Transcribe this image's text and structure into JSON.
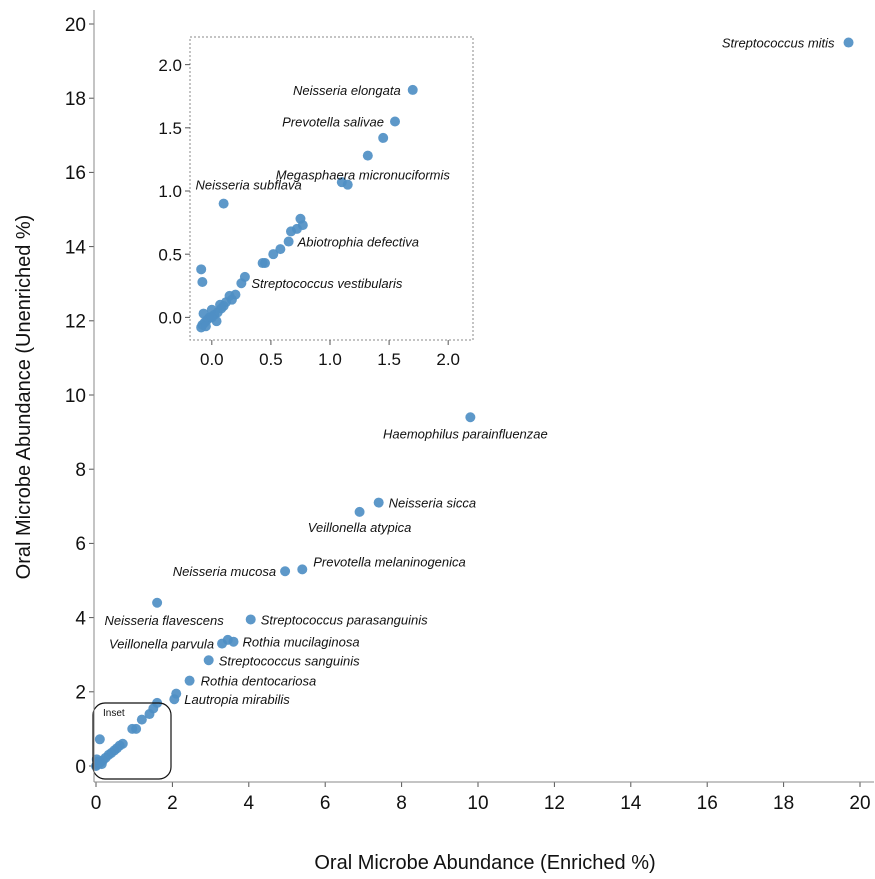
{
  "chart_data": [
    {
      "type": "scatter",
      "id": "main",
      "title": "",
      "xlabel": "Oral Microbe Abundance (Enriched %)",
      "ylabel": "Oral Microbe Abundance (Unenriched %)",
      "xlim": [
        0,
        20
      ],
      "ylim": [
        0,
        20
      ],
      "xticks": [
        "0",
        "2",
        "4",
        "6",
        "8",
        "10",
        "12",
        "14",
        "16",
        "18",
        "20"
      ],
      "yticks": [
        "0",
        "2",
        "4",
        "6",
        "8",
        "10",
        "12",
        "14",
        "16",
        "18",
        "20"
      ],
      "grid": false,
      "point_color": "#4f8fc4",
      "inset_label": "Inset",
      "labeled_points": [
        {
          "name": "Streptococcus mitis",
          "x": 19.7,
          "y": 19.5
        },
        {
          "name": "Haemophilus parainfluenzae",
          "x": 9.8,
          "y": 9.4
        },
        {
          "name": "Neisseria sicca",
          "x": 7.4,
          "y": 7.1
        },
        {
          "name": "Veillonella atypica",
          "x": 6.9,
          "y": 6.85
        },
        {
          "name": "Prevotella melaninogenica",
          "x": 5.4,
          "y": 5.3
        },
        {
          "name": "Neisseria mucosa",
          "x": 4.95,
          "y": 5.25
        },
        {
          "name": "Neisseria flavescens",
          "x": 1.6,
          "y": 4.4
        },
        {
          "name": "Streptococcus parasanguinis",
          "x": 4.05,
          "y": 3.95
        },
        {
          "name": "Veillonella parvula",
          "x": 3.3,
          "y": 3.3
        },
        {
          "name": "Rothia mucilaginosa",
          "x": 3.6,
          "y": 3.35
        },
        {
          "name": "Streptococcus sanguinis",
          "x": 2.95,
          "y": 2.85
        },
        {
          "name": "Rothia dentocariosa",
          "x": 2.45,
          "y": 2.3
        },
        {
          "name": "Lautropia mirabilis",
          "x": 2.05,
          "y": 1.8
        }
      ],
      "unlabeled_points": [
        {
          "x": 3.45,
          "y": 3.4
        },
        {
          "x": 2.1,
          "y": 1.95
        },
        {
          "x": 1.6,
          "y": 1.7
        },
        {
          "x": 1.5,
          "y": 1.55
        },
        {
          "x": 1.4,
          "y": 1.4
        },
        {
          "x": 1.2,
          "y": 1.25
        },
        {
          "x": 1.05,
          "y": 1.0
        },
        {
          "x": 0.95,
          "y": 1.0
        },
        {
          "x": 0.1,
          "y": 0.72
        },
        {
          "x": 0.7,
          "y": 0.6
        },
        {
          "x": 0.62,
          "y": 0.55
        },
        {
          "x": 0.55,
          "y": 0.48
        },
        {
          "x": 0.48,
          "y": 0.42
        },
        {
          "x": 0.4,
          "y": 0.35
        },
        {
          "x": 0.33,
          "y": 0.3
        },
        {
          "x": 0.25,
          "y": 0.22
        },
        {
          "x": 0.18,
          "y": 0.15
        },
        {
          "x": 0.12,
          "y": 0.1
        },
        {
          "x": 0.07,
          "y": 0.06
        },
        {
          "x": 0.03,
          "y": 0.03
        },
        {
          "x": 0.0,
          "y": 0.0
        },
        {
          "x": 0.05,
          "y": 0.12
        },
        {
          "x": 0.15,
          "y": 0.05
        },
        {
          "x": 0.02,
          "y": 0.18
        }
      ]
    },
    {
      "type": "scatter",
      "id": "inset",
      "title": "",
      "xlabel": "",
      "ylabel": "",
      "xlim": [
        -0.1,
        2.1
      ],
      "ylim": [
        -0.1,
        2.1
      ],
      "xticks": [
        "0.0",
        "0.5",
        "1.0",
        "1.5",
        "2.0"
      ],
      "yticks": [
        "0.0",
        "0.5",
        "1.0",
        "1.5",
        "2.0"
      ],
      "grid": false,
      "point_color": "#4f8fc4",
      "labeled_points": [
        {
          "name": "Neisseria elongata",
          "x": 1.7,
          "y": 1.8
        },
        {
          "name": "Prevotella salivae",
          "x": 1.55,
          "y": 1.55
        },
        {
          "name": "Megasphaera micronuciformis",
          "x": 1.32,
          "y": 1.28
        },
        {
          "name": "Neisseria subflava",
          "x": 0.1,
          "y": 0.9
        },
        {
          "name": "Abiotrophia defectiva",
          "x": 0.65,
          "y": 0.6
        },
        {
          "name": "Streptococcus vestibularis",
          "x": 0.25,
          "y": 0.27
        }
      ],
      "unlabeled_points": [
        {
          "x": 1.45,
          "y": 1.42
        },
        {
          "x": 1.1,
          "y": 1.07
        },
        {
          "x": 1.15,
          "y": 1.05
        },
        {
          "x": 0.75,
          "y": 0.78
        },
        {
          "x": 0.77,
          "y": 0.73
        },
        {
          "x": 0.72,
          "y": 0.7
        },
        {
          "x": 0.67,
          "y": 0.68
        },
        {
          "x": 0.58,
          "y": 0.54
        },
        {
          "x": 0.52,
          "y": 0.5
        },
        {
          "x": 0.45,
          "y": 0.43
        },
        {
          "x": 0.43,
          "y": 0.43
        },
        {
          "x": 0.28,
          "y": 0.32
        },
        {
          "x": 0.2,
          "y": 0.18
        },
        {
          "x": 0.15,
          "y": 0.17
        },
        {
          "x": 0.17,
          "y": 0.14
        },
        {
          "x": 0.12,
          "y": 0.12
        },
        {
          "x": 0.1,
          "y": 0.09
        },
        {
          "x": 0.08,
          "y": 0.07
        },
        {
          "x": 0.05,
          "y": 0.04
        },
        {
          "x": 0.0,
          "y": 0.06
        },
        {
          "x": 0.02,
          "y": 0.02
        },
        {
          "x": -0.02,
          "y": 0.0
        },
        {
          "x": -0.04,
          "y": -0.02
        },
        {
          "x": -0.06,
          "y": -0.04
        },
        {
          "x": -0.08,
          "y": -0.06
        },
        {
          "x": -0.09,
          "y": -0.08
        },
        {
          "x": -0.05,
          "y": -0.07
        },
        {
          "x": -0.07,
          "y": 0.03
        },
        {
          "x": 0.04,
          "y": -0.03
        },
        {
          "x": -0.09,
          "y": 0.38
        },
        {
          "x": -0.08,
          "y": 0.28
        },
        {
          "x": 0.0,
          "y": 0.0
        },
        {
          "x": 0.07,
          "y": 0.1
        }
      ]
    }
  ]
}
